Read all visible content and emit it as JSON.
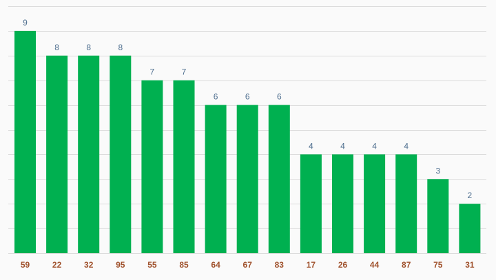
{
  "chart_data": {
    "type": "bar",
    "title": "",
    "xlabel": "",
    "ylabel": "",
    "categories": [
      "59",
      "22",
      "32",
      "95",
      "55",
      "85",
      "64",
      "67",
      "83",
      "17",
      "26",
      "44",
      "87",
      "75",
      "31"
    ],
    "values": [
      9,
      8,
      8,
      8,
      7,
      7,
      6,
      6,
      6,
      4,
      4,
      4,
      4,
      3,
      2
    ],
    "ylim": [
      0,
      10
    ],
    "grid": true,
    "show_y_tick_labels": false,
    "data_labels": true,
    "colors": {
      "bar": "#00b050",
      "value_label": "#4f6f8f",
      "tick_label": "#a0522d",
      "grid": "#dcdcdc",
      "background": "#fafafa"
    }
  }
}
